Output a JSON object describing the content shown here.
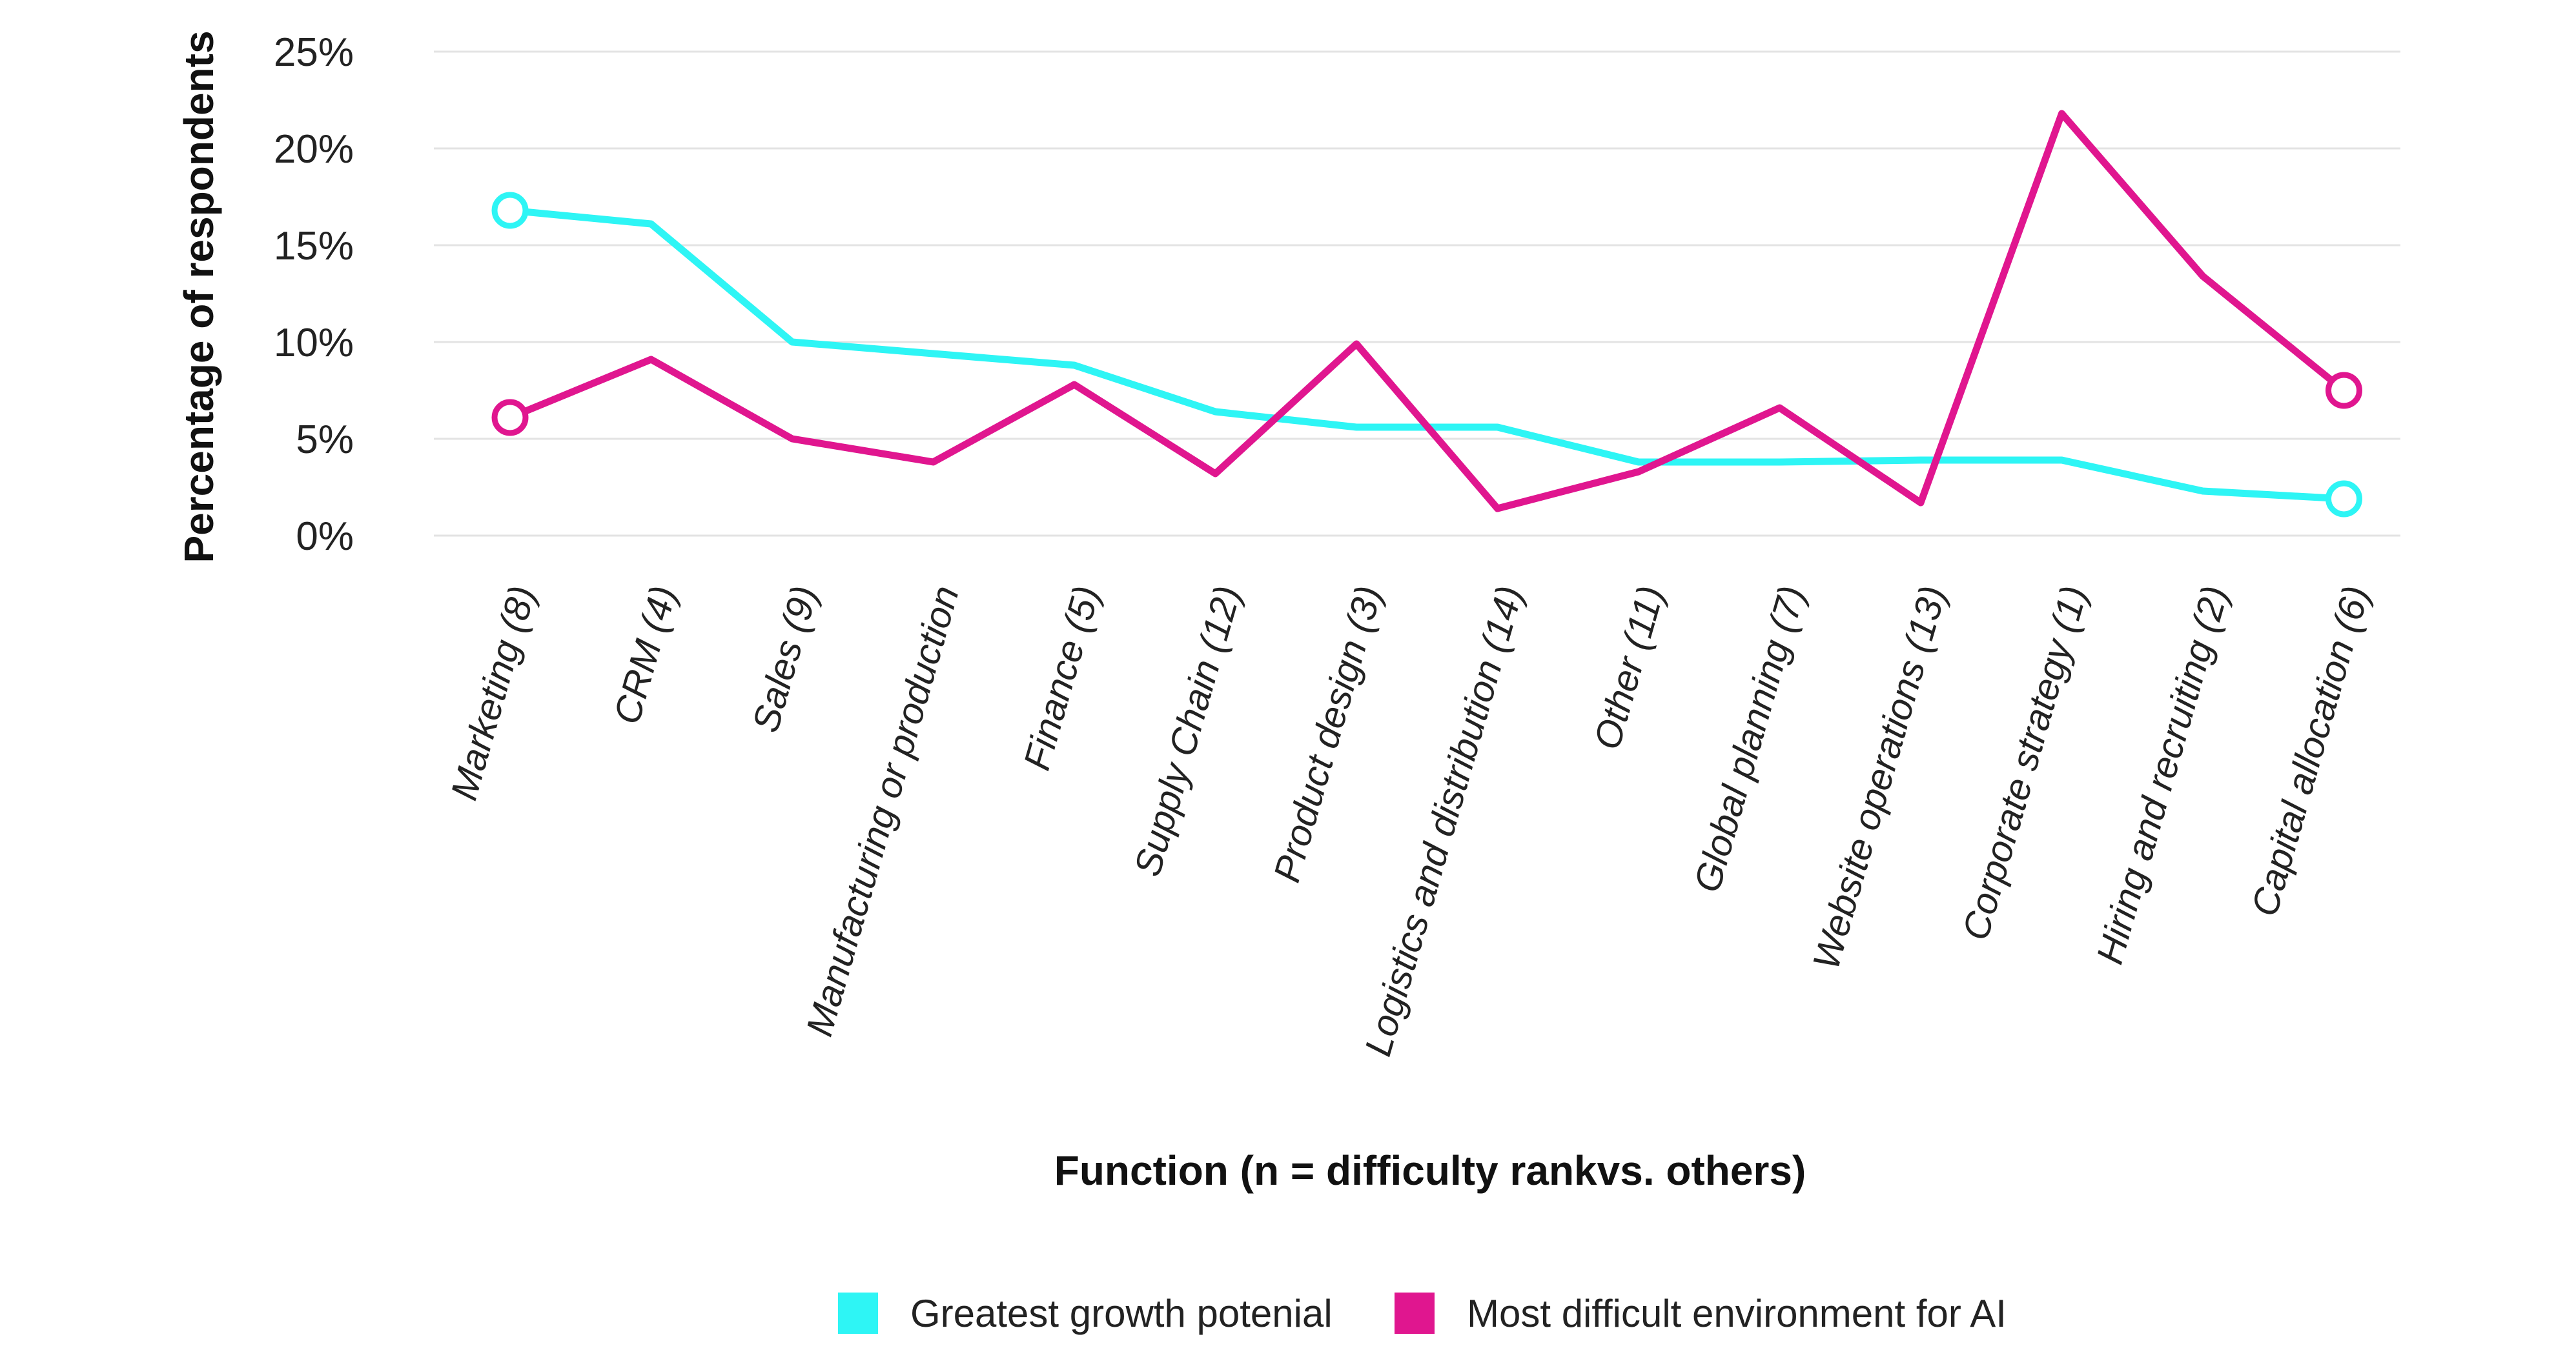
{
  "chart_data": {
    "type": "line",
    "title": "",
    "xlabel": "Function (n = difficulty rankvs. others)",
    "ylabel": "Percentage of respondents",
    "ylim": [
      0,
      25
    ],
    "yticks": [
      0,
      5,
      10,
      15,
      20,
      25
    ],
    "ytick_format": "%",
    "grid": true,
    "legend_position": "bottom-center",
    "categories": [
      "Marketing (8)",
      "CRM (4)",
      "Sales (9)",
      "Manufacturing or production",
      "Finance (5)",
      "Supply Chain (12)",
      "Product design (3)",
      "Logistics and distribution (14)",
      "Other (11)",
      "Global planning (7)",
      "Website operations (13)",
      "Corporate strategy (1)",
      "Hiring and recruiting (2)",
      "Capital allocation (6)"
    ],
    "series": [
      {
        "name": "Greatest growth potenial",
        "color": "#2ef5f5",
        "values": [
          16.8,
          16.1,
          10.0,
          9.4,
          8.8,
          6.4,
          5.6,
          5.6,
          3.8,
          3.8,
          3.9,
          3.9,
          2.3,
          1.9
        ]
      },
      {
        "name": "Most difficult environment for AI",
        "color": "#e0168f",
        "values": [
          6.1,
          9.1,
          5.0,
          3.8,
          7.8,
          3.2,
          9.9,
          1.4,
          3.3,
          6.6,
          1.7,
          21.8,
          13.4,
          7.5
        ]
      }
    ]
  }
}
